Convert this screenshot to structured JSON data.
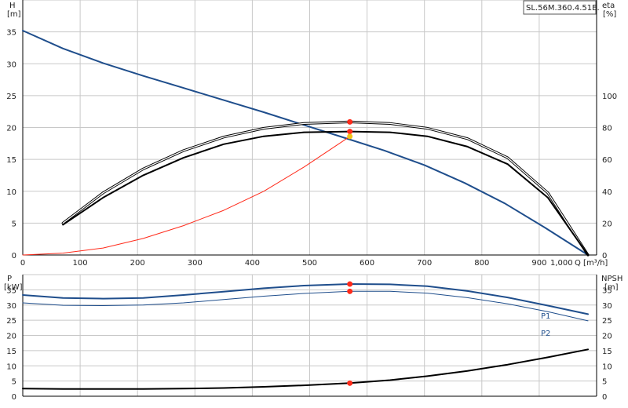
{
  "model": "SL.56M.360.4.51E.",
  "colors": {
    "blue": "#1f4e8c",
    "black": "#000000",
    "red": "#ff2a1a",
    "yellow": "#f3c316",
    "grid": "#c8c8c8"
  },
  "chart_data": [
    {
      "type": "line",
      "panel": "top",
      "left_axis": {
        "label_line1": "H",
        "label_line2": "[m]",
        "ylim": [
          0,
          40
        ],
        "ticks": [
          0,
          5,
          10,
          15,
          20,
          25,
          30,
          35
        ]
      },
      "right_axis": {
        "label_line1": "eta",
        "label_line2": "[%]",
        "ylim": [
          0,
          160
        ],
        "ticks": [
          0,
          20,
          40,
          60,
          80,
          100
        ]
      },
      "x_axis": {
        "label": "Q [m³/h]",
        "xlim": [
          0,
          1000
        ],
        "ticks": [
          0,
          100,
          200,
          300,
          400,
          500,
          600,
          700,
          800,
          900
        ],
        "tick_labels": [
          "0",
          "100",
          "200",
          "300",
          "400",
          "500",
          "600",
          "700",
          "800",
          "900"
        ],
        "end_label": "1,000"
      },
      "grid": true,
      "series": [
        {
          "id": "head",
          "axis": "left",
          "color": "blue",
          "width": 2,
          "x": [
            0,
            70,
            140,
            210,
            280,
            350,
            420,
            490,
            560,
            630,
            700,
            770,
            840,
            910,
            985
          ],
          "y": [
            35.2,
            32.4,
            30.1,
            28.1,
            26.2,
            24.3,
            22.4,
            20.4,
            18.4,
            16.4,
            14.1,
            11.3,
            8.1,
            4.3,
            0
          ]
        },
        {
          "id": "eta-outer",
          "axis": "right",
          "color": "black",
          "width": 1,
          "double": true,
          "x": [
            70,
            140,
            210,
            280,
            350,
            420,
            490,
            570,
            640,
            705,
            775,
            845,
            915,
            985
          ],
          "y": [
            20,
            39,
            54,
            65.5,
            74,
            79.5,
            82.5,
            83.5,
            82.5,
            79.5,
            73,
            61,
            39,
            0
          ]
        },
        {
          "id": "eta-inner",
          "axis": "right",
          "color": "black",
          "width": 2,
          "x": [
            70,
            140,
            210,
            280,
            350,
            420,
            490,
            570,
            640,
            705,
            775,
            845,
            915,
            985
          ],
          "y": [
            19,
            36,
            50,
            61,
            69.5,
            74.5,
            77,
            77.5,
            77,
            74.5,
            68,
            57,
            36,
            0
          ]
        },
        {
          "id": "system",
          "axis": "left",
          "color": "red",
          "width": 1,
          "x": [
            0,
            70,
            140,
            210,
            280,
            350,
            420,
            490,
            570
          ],
          "y": [
            0,
            0.3,
            1.1,
            2.6,
            4.6,
            7.0,
            10.0,
            13.8,
            18.6
          ]
        }
      ],
      "markers": [
        {
          "axis": "right",
          "x": 570,
          "y": 83.5,
          "color": "red"
        },
        {
          "axis": "right",
          "x": 570,
          "y": 77.5,
          "color": "red"
        },
        {
          "axis": "left",
          "x": 570,
          "y": 18.6,
          "color": "yellow"
        }
      ]
    },
    {
      "type": "line",
      "panel": "bottom",
      "left_axis": {
        "label_line1": "P",
        "label_line2": "[kW]",
        "ylim": [
          0,
          40
        ],
        "ticks": [
          0,
          5,
          10,
          15,
          20,
          25,
          30,
          35
        ]
      },
      "right_axis": {
        "label_line1": "NPSH",
        "label_line2": "[m]",
        "ylim": [
          0,
          40
        ],
        "ticks": [
          0,
          5,
          10,
          15,
          20,
          25,
          30,
          35
        ]
      },
      "x_axis": {
        "xlim": [
          0,
          1000
        ]
      },
      "grid": true,
      "series": [
        {
          "id": "P1",
          "name": "P1",
          "axis": "left",
          "color": "blue",
          "width": 2,
          "x": [
            0,
            70,
            140,
            210,
            280,
            350,
            420,
            490,
            570,
            640,
            705,
            775,
            845,
            915,
            985
          ],
          "y": [
            33.3,
            32.3,
            32.1,
            32.3,
            33.3,
            34.4,
            35.5,
            36.4,
            36.9,
            36.8,
            36.2,
            34.6,
            32.5,
            29.8,
            27.0
          ]
        },
        {
          "id": "P2",
          "name": "P2",
          "axis": "left",
          "color": "blue",
          "width": 1,
          "x": [
            0,
            70,
            140,
            210,
            280,
            350,
            420,
            490,
            570,
            640,
            705,
            775,
            845,
            915,
            985
          ],
          "y": [
            30.7,
            29.9,
            29.8,
            30.0,
            30.7,
            31.8,
            32.9,
            33.8,
            34.5,
            34.5,
            33.9,
            32.4,
            30.4,
            27.8,
            24.8
          ]
        },
        {
          "id": "NPSH",
          "axis": "right",
          "color": "black",
          "width": 2,
          "x": [
            0,
            70,
            140,
            210,
            280,
            350,
            420,
            490,
            570,
            640,
            705,
            775,
            845,
            915,
            985
          ],
          "y": [
            2.5,
            2.4,
            2.4,
            2.4,
            2.5,
            2.7,
            3.1,
            3.6,
            4.3,
            5.3,
            6.6,
            8.3,
            10.4,
            12.8,
            15.4
          ]
        }
      ],
      "markers": [
        {
          "axis": "left",
          "x": 570,
          "y": 36.9,
          "color": "red"
        },
        {
          "axis": "left",
          "x": 570,
          "y": 34.5,
          "color": "red"
        },
        {
          "axis": "right",
          "x": 570,
          "y": 4.3,
          "color": "red"
        }
      ]
    }
  ]
}
